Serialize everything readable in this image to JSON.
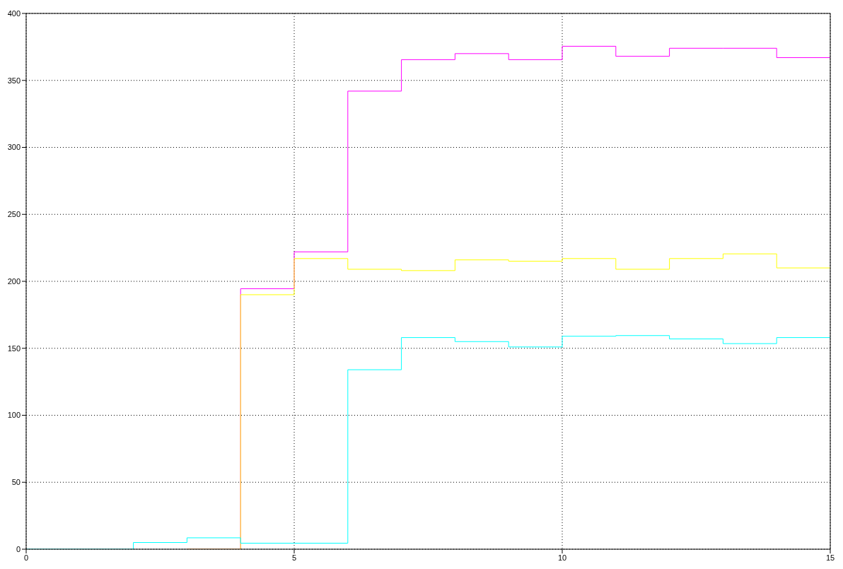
{
  "chart_data": {
    "type": "step",
    "x": [
      0,
      1,
      2,
      3,
      4,
      5,
      6,
      7,
      8,
      9,
      10,
      11,
      12,
      13,
      14,
      15
    ],
    "series": [
      {
        "color": "#ff00ff",
        "values": [
          null,
          null,
          null,
          0,
          194.5,
          222,
          342,
          365.5,
          370,
          365.5,
          375.5,
          368,
          374,
          374,
          367,
          367
        ]
      },
      {
        "color": "#ffff00",
        "values": [
          null,
          null,
          null,
          0,
          190,
          217,
          209,
          208,
          216,
          215,
          217,
          209,
          217,
          220.5,
          210,
          210
        ]
      },
      {
        "color": "#00ffff",
        "values": [
          0,
          0,
          5,
          8.5,
          4.5,
          4.5,
          134,
          158,
          155,
          151,
          159,
          159.5,
          157,
          153.5,
          158,
          158
        ]
      }
    ],
    "xlim": [
      0,
      15
    ],
    "xticks": [
      0,
      5,
      10,
      15
    ],
    "ylim": [
      0,
      400
    ],
    "yticks": [
      0,
      50,
      100,
      150,
      200,
      250,
      300,
      350,
      400
    ],
    "grid": true
  }
}
